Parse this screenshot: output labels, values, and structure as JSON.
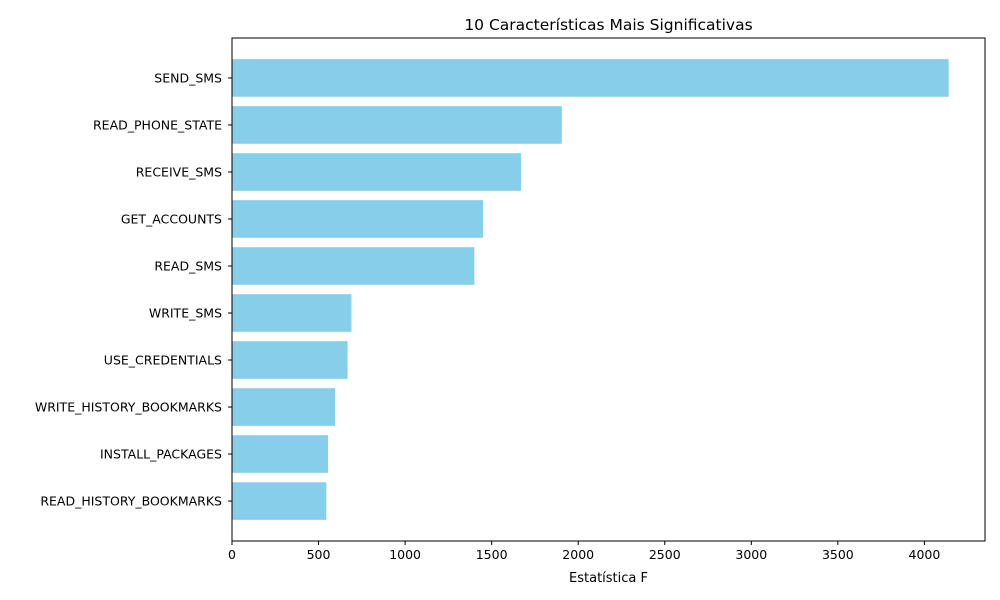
{
  "chart_data": {
    "type": "bar",
    "orientation": "horizontal",
    "title": "10 Características Mais Significativas",
    "xlabel": "Estatística F",
    "ylabel": "",
    "categories": [
      "SEND_SMS",
      "READ_PHONE_STATE",
      "RECEIVE_SMS",
      "GET_ACCOUNTS",
      "READ_SMS",
      "WRITE_SMS",
      "USE_CREDENTIALS",
      "WRITE_HISTORY_BOOKMARKS",
      "INSTALL_PACKAGES",
      "READ_HISTORY_BOOKMARKS"
    ],
    "values": [
      4140,
      1905,
      1670,
      1450,
      1400,
      690,
      668,
      595,
      555,
      545
    ],
    "xlim": [
      0,
      4350
    ],
    "xticks": [
      0,
      500,
      1000,
      1500,
      2000,
      2500,
      3000,
      3500,
      4000
    ],
    "bar_color": "#87CEEB",
    "grid": false,
    "legend": "none"
  }
}
